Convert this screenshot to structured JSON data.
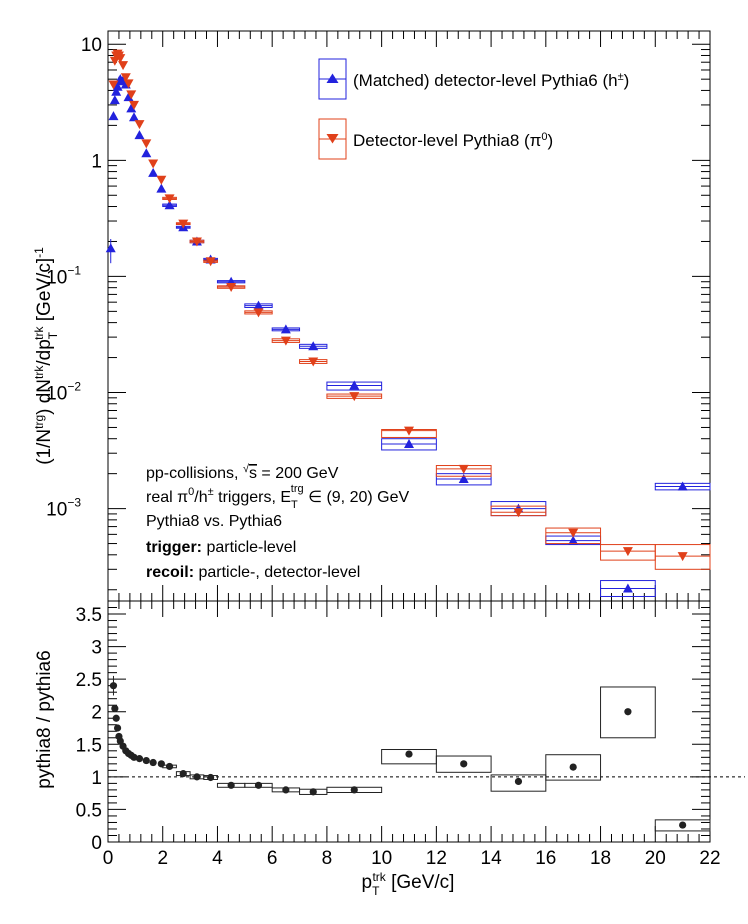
{
  "colors": {
    "blue": "#2222dd",
    "red": "#e0401a",
    "black": "#222222"
  },
  "chart_data": [
    {
      "type": "scatter",
      "ylog": true,
      "x_range": [
        0,
        22
      ],
      "y_range": [
        0.00016,
        13
      ],
      "y_ticks": [
        {
          "value": 10,
          "label": "10"
        },
        {
          "value": 1,
          "label": "1"
        },
        {
          "value": 0.1,
          "label": "10",
          "exp": "−1"
        },
        {
          "value": 0.01,
          "label": "10",
          "exp": "−2"
        },
        {
          "value": 0.001,
          "label": "10",
          "exp": "−3"
        }
      ],
      "ylabel": {
        "prefix": "(1/N",
        "sup1": "trg",
        "mid1": ") dN",
        "sup2": "trk",
        "mid2": "/dp",
        "sub3": "T",
        "sup3": "trk",
        "mid3": " [GeV/c]",
        "sup4": "-1"
      },
      "legend": [
        {
          "label": "(Matched) detector-level Pythia6 (h",
          "sup": "±",
          "tail": ")",
          "color": "blue",
          "marker": "triangle-up"
        },
        {
          "label": "Detector-level Pythia8 (π",
          "sup": "0",
          "tail": ")",
          "color": "red",
          "marker": "triangle-down"
        }
      ],
      "annotations": [
        {
          "text": "pp-collisions, √s = 200 GeV"
        },
        {
          "text": "real π⁰/h± triggers, E_T^trg ∈ (9, 20) GeV"
        },
        {
          "text": "Pythia8 vs. Pythia6"
        },
        {
          "bold": "trigger:",
          "text": " particle-level"
        },
        {
          "bold": "recoil:",
          "text": " particle-, detector-level"
        }
      ],
      "series": [
        {
          "name": "(Matched) detector-level Pythia6 (h±)",
          "color": "blue",
          "marker": "triangle-up",
          "points": [
            {
              "x": 0.1,
              "xlo": 0.0,
              "xhi": 0.2,
              "y": 0.175,
              "ylo": 0.13,
              "yhi": 0.21
            },
            {
              "x": 0.2,
              "xlo": 0.15,
              "xhi": 0.25,
              "y": 2.4,
              "ylo": 2.3,
              "yhi": 2.5
            },
            {
              "x": 0.25,
              "xlo": 0.2,
              "xhi": 0.3,
              "y": 3.3,
              "ylo": 3.2,
              "yhi": 3.4
            },
            {
              "x": 0.3,
              "xlo": 0.25,
              "xhi": 0.35,
              "y": 3.9,
              "ylo": 3.8,
              "yhi": 4.0
            },
            {
              "x": 0.35,
              "xlo": 0.3,
              "xhi": 0.4,
              "y": 4.3,
              "ylo": 4.2,
              "yhi": 4.4
            },
            {
              "x": 0.4,
              "xlo": 0.35,
              "xhi": 0.45,
              "y": 4.8,
              "ylo": 4.7,
              "yhi": 4.9
            },
            {
              "x": 0.45,
              "xlo": 0.4,
              "xhi": 0.5,
              "y": 5.0,
              "ylo": 4.9,
              "yhi": 5.1
            },
            {
              "x": 0.55,
              "xlo": 0.5,
              "xhi": 0.6,
              "y": 4.9,
              "ylo": 4.8,
              "yhi": 5.0
            },
            {
              "x": 0.65,
              "xlo": 0.6,
              "xhi": 0.7,
              "y": 4.5,
              "ylo": 4.4,
              "yhi": 4.6
            },
            {
              "x": 0.75,
              "xlo": 0.7,
              "xhi": 0.8,
              "y": 3.5,
              "ylo": 3.4,
              "yhi": 3.6
            },
            {
              "x": 0.85,
              "xlo": 0.8,
              "xhi": 0.9,
              "y": 2.8,
              "ylo": 2.7,
              "yhi": 2.9
            },
            {
              "x": 0.95,
              "xlo": 0.9,
              "xhi": 1.0,
              "y": 2.35,
              "ylo": 2.3,
              "yhi": 2.4
            },
            {
              "x": 1.15,
              "xlo": 1.1,
              "xhi": 1.2,
              "y": 1.65,
              "ylo": 1.6,
              "yhi": 1.7
            },
            {
              "x": 1.4,
              "xlo": 1.3,
              "xhi": 1.5,
              "y": 1.15,
              "ylo": 1.12,
              "yhi": 1.18
            },
            {
              "x": 1.65,
              "xlo": 1.5,
              "xhi": 1.8,
              "y": 0.78,
              "ylo": 0.76,
              "yhi": 0.8
            },
            {
              "x": 1.95,
              "xlo": 1.8,
              "xhi": 2.1,
              "y": 0.57,
              "ylo": 0.56,
              "yhi": 0.58
            },
            {
              "x": 2.25,
              "xlo": 2.0,
              "xhi": 2.5,
              "y": 0.41,
              "ylo": 0.4,
              "yhi": 0.42
            },
            {
              "x": 2.75,
              "xlo": 2.5,
              "xhi": 3.0,
              "y": 0.265,
              "ylo": 0.26,
              "yhi": 0.27
            },
            {
              "x": 3.25,
              "xlo": 3.0,
              "xhi": 3.5,
              "y": 0.2,
              "ylo": 0.195,
              "yhi": 0.205
            },
            {
              "x": 3.75,
              "xlo": 3.5,
              "xhi": 4.0,
              "y": 0.14,
              "ylo": 0.137,
              "yhi": 0.143
            },
            {
              "x": 4.5,
              "xlo": 4.0,
              "xhi": 5.0,
              "y": 0.09,
              "ylo": 0.088,
              "yhi": 0.092
            },
            {
              "x": 5.5,
              "xlo": 5.0,
              "xhi": 6.0,
              "y": 0.056,
              "ylo": 0.054,
              "yhi": 0.058
            },
            {
              "x": 6.5,
              "xlo": 6.0,
              "xhi": 7.0,
              "y": 0.035,
              "ylo": 0.034,
              "yhi": 0.036
            },
            {
              "x": 7.5,
              "xlo": 7.0,
              "xhi": 8.0,
              "y": 0.025,
              "ylo": 0.024,
              "yhi": 0.026
            },
            {
              "x": 9.0,
              "xlo": 8.0,
              "xhi": 10.0,
              "y": 0.0115,
              "ylo": 0.0105,
              "yhi": 0.0123
            },
            {
              "x": 11.0,
              "xlo": 10.0,
              "xhi": 12.0,
              "y": 0.0036,
              "ylo": 0.0032,
              "yhi": 0.004
            },
            {
              "x": 13.0,
              "xlo": 12.0,
              "xhi": 14.0,
              "y": 0.0018,
              "ylo": 0.0016,
              "yhi": 0.002
            },
            {
              "x": 15.0,
              "xlo": 14.0,
              "xhi": 16.0,
              "y": 0.001,
              "ylo": 0.00087,
              "yhi": 0.00115
            },
            {
              "x": 17.0,
              "xlo": 16.0,
              "xhi": 18.0,
              "y": 0.00053,
              "ylo": 0.00049,
              "yhi": 0.00058
            },
            {
              "x": 19.0,
              "xlo": 18.0,
              "xhi": 20.0,
              "y": 0.000205,
              "ylo": 0.000175,
              "yhi": 0.00024
            },
            {
              "x": 21.0,
              "xlo": 20.0,
              "xhi": 22.0,
              "y": 0.00155,
              "ylo": 0.00145,
              "yhi": 0.00165
            }
          ]
        },
        {
          "name": "Detector-level Pythia8 (π0)",
          "color": "red",
          "marker": "triangle-down",
          "points": [
            {
              "x": 0.2,
              "xlo": 0.15,
              "xhi": 0.25,
              "y": 4.5,
              "ylo": 4.4,
              "yhi": 4.6
            },
            {
              "x": 0.25,
              "xlo": 0.2,
              "xhi": 0.3,
              "y": 7.2,
              "ylo": 7.0,
              "yhi": 7.4
            },
            {
              "x": 0.3,
              "xlo": 0.25,
              "xhi": 0.35,
              "y": 8.0,
              "ylo": 7.8,
              "yhi": 8.2
            },
            {
              "x": 0.35,
              "xlo": 0.3,
              "xhi": 0.4,
              "y": 8.3,
              "ylo": 8.1,
              "yhi": 8.5
            },
            {
              "x": 0.4,
              "xlo": 0.35,
              "xhi": 0.45,
              "y": 8.0,
              "ylo": 7.8,
              "yhi": 8.2
            },
            {
              "x": 0.45,
              "xlo": 0.4,
              "xhi": 0.5,
              "y": 7.6,
              "ylo": 7.4,
              "yhi": 7.8
            },
            {
              "x": 0.55,
              "xlo": 0.5,
              "xhi": 0.6,
              "y": 6.6,
              "ylo": 6.4,
              "yhi": 6.8
            },
            {
              "x": 0.65,
              "xlo": 0.6,
              "xhi": 0.7,
              "y": 5.2,
              "ylo": 5.0,
              "yhi": 5.4
            },
            {
              "x": 0.75,
              "xlo": 0.7,
              "xhi": 0.8,
              "y": 4.6,
              "ylo": 4.4,
              "yhi": 4.8
            },
            {
              "x": 0.85,
              "xlo": 0.8,
              "xhi": 0.9,
              "y": 3.7,
              "ylo": 3.6,
              "yhi": 3.8
            },
            {
              "x": 0.95,
              "xlo": 0.9,
              "xhi": 1.0,
              "y": 3.0,
              "ylo": 2.9,
              "yhi": 3.1
            },
            {
              "x": 1.15,
              "xlo": 1.1,
              "xhi": 1.2,
              "y": 2.05,
              "ylo": 2.0,
              "yhi": 2.1
            },
            {
              "x": 1.4,
              "xlo": 1.3,
              "xhi": 1.5,
              "y": 1.4,
              "ylo": 1.37,
              "yhi": 1.43
            },
            {
              "x": 1.65,
              "xlo": 1.5,
              "xhi": 1.8,
              "y": 0.94,
              "ylo": 0.92,
              "yhi": 0.96
            },
            {
              "x": 1.95,
              "xlo": 1.8,
              "xhi": 2.1,
              "y": 0.68,
              "ylo": 0.66,
              "yhi": 0.7
            },
            {
              "x": 2.25,
              "xlo": 2.0,
              "xhi": 2.5,
              "y": 0.47,
              "ylo": 0.46,
              "yhi": 0.48
            },
            {
              "x": 2.75,
              "xlo": 2.5,
              "xhi": 3.0,
              "y": 0.285,
              "ylo": 0.28,
              "yhi": 0.29
            },
            {
              "x": 3.25,
              "xlo": 3.0,
              "xhi": 3.5,
              "y": 0.2,
              "ylo": 0.195,
              "yhi": 0.205
            },
            {
              "x": 3.75,
              "xlo": 3.5,
              "xhi": 4.0,
              "y": 0.135,
              "ylo": 0.132,
              "yhi": 0.138
            },
            {
              "x": 4.5,
              "xlo": 4.0,
              "xhi": 5.0,
              "y": 0.081,
              "ylo": 0.079,
              "yhi": 0.083
            },
            {
              "x": 5.5,
              "xlo": 5.0,
              "xhi": 6.0,
              "y": 0.049,
              "ylo": 0.0475,
              "yhi": 0.0505
            },
            {
              "x": 6.5,
              "xlo": 6.0,
              "xhi": 7.0,
              "y": 0.028,
              "ylo": 0.027,
              "yhi": 0.029
            },
            {
              "x": 7.5,
              "xlo": 7.0,
              "xhi": 8.0,
              "y": 0.0185,
              "ylo": 0.0178,
              "yhi": 0.0192
            },
            {
              "x": 9.0,
              "xlo": 8.0,
              "xhi": 10.0,
              "y": 0.0093,
              "ylo": 0.0089,
              "yhi": 0.0097
            },
            {
              "x": 11.0,
              "xlo": 10.0,
              "xhi": 12.0,
              "y": 0.0047,
              "ylo": 0.0041,
              "yhi": 0.0048
            },
            {
              "x": 13.0,
              "xlo": 12.0,
              "xhi": 14.0,
              "y": 0.0022,
              "ylo": 0.0019,
              "yhi": 0.00235
            },
            {
              "x": 15.0,
              "xlo": 14.0,
              "xhi": 16.0,
              "y": 0.00093,
              "ylo": 0.00087,
              "yhi": 0.00105
            },
            {
              "x": 17.0,
              "xlo": 16.0,
              "xhi": 18.0,
              "y": 0.00062,
              "ylo": 0.0005,
              "yhi": 0.00068
            },
            {
              "x": 19.0,
              "xlo": 18.0,
              "xhi": 20.0,
              "y": 0.00043,
              "ylo": 0.00036,
              "yhi": 0.00049
            },
            {
              "x": 21.0,
              "xlo": 20.0,
              "xhi": 22.0,
              "y": 0.00039,
              "ylo": 0.0003,
              "yhi": 0.00049
            }
          ]
        }
      ]
    },
    {
      "type": "scatter",
      "x_range": [
        0,
        22
      ],
      "y_range": [
        0,
        3.7
      ],
      "x_ticks": [
        0,
        2,
        4,
        6,
        8,
        10,
        12,
        14,
        16,
        18,
        20,
        22
      ],
      "y_ticks": [
        0,
        0.5,
        1,
        1.5,
        2,
        2.5,
        3,
        3.5
      ],
      "y_tick_labels": [
        "0",
        "0.5",
        "1",
        "1.5",
        "2",
        "2.5",
        "3",
        "3.5"
      ],
      "xlabel": {
        "main": "p",
        "sub": "T",
        "sup": "trk",
        "tail": " [GeV/c]"
      },
      "ylabel": "pythia8 / pythia6",
      "reference_line": 1,
      "series": [
        {
          "name": "pythia8 / pythia6",
          "color": "black",
          "marker": "circle",
          "points": [
            {
              "x": 0.2,
              "xlo": 0.15,
              "xhi": 0.25,
              "y": 2.4,
              "ylo": 2.25,
              "yhi": 2.55
            },
            {
              "x": 0.25,
              "xlo": 0.2,
              "xhi": 0.3,
              "y": 2.05,
              "ylo": 2.0,
              "yhi": 2.1
            },
            {
              "x": 0.3,
              "xlo": 0.25,
              "xhi": 0.35,
              "y": 1.9,
              "ylo": 1.85,
              "yhi": 1.95
            },
            {
              "x": 0.35,
              "xlo": 0.3,
              "xhi": 0.4,
              "y": 1.75,
              "ylo": 1.72,
              "yhi": 1.78
            },
            {
              "x": 0.4,
              "xlo": 0.35,
              "xhi": 0.45,
              "y": 1.62,
              "ylo": 1.6,
              "yhi": 1.64
            },
            {
              "x": 0.45,
              "xlo": 0.4,
              "xhi": 0.5,
              "y": 1.55,
              "ylo": 1.53,
              "yhi": 1.57
            },
            {
              "x": 0.55,
              "xlo": 0.5,
              "xhi": 0.6,
              "y": 1.47,
              "ylo": 1.45,
              "yhi": 1.49
            },
            {
              "x": 0.65,
              "xlo": 0.6,
              "xhi": 0.7,
              "y": 1.4,
              "ylo": 1.38,
              "yhi": 1.42
            },
            {
              "x": 0.75,
              "xlo": 0.7,
              "xhi": 0.8,
              "y": 1.36,
              "ylo": 1.34,
              "yhi": 1.38
            },
            {
              "x": 0.85,
              "xlo": 0.8,
              "xhi": 0.9,
              "y": 1.33,
              "ylo": 1.31,
              "yhi": 1.35
            },
            {
              "x": 0.95,
              "xlo": 0.9,
              "xhi": 1.0,
              "y": 1.3,
              "ylo": 1.28,
              "yhi": 1.32
            },
            {
              "x": 1.15,
              "xlo": 1.1,
              "xhi": 1.2,
              "y": 1.28,
              "ylo": 1.26,
              "yhi": 1.3
            },
            {
              "x": 1.4,
              "xlo": 1.3,
              "xhi": 1.5,
              "y": 1.25,
              "ylo": 1.23,
              "yhi": 1.27
            },
            {
              "x": 1.65,
              "xlo": 1.5,
              "xhi": 1.8,
              "y": 1.22,
              "ylo": 1.2,
              "yhi": 1.24
            },
            {
              "x": 1.95,
              "xlo": 1.8,
              "xhi": 2.1,
              "y": 1.2,
              "ylo": 1.18,
              "yhi": 1.22
            },
            {
              "x": 2.25,
              "xlo": 2.0,
              "xhi": 2.5,
              "y": 1.16,
              "ylo": 1.14,
              "yhi": 1.18
            },
            {
              "x": 2.75,
              "xlo": 2.5,
              "xhi": 3.0,
              "y": 1.05,
              "ylo": 1.02,
              "yhi": 1.08
            },
            {
              "x": 3.25,
              "xlo": 3.0,
              "xhi": 3.5,
              "y": 1.0,
              "ylo": 0.97,
              "yhi": 1.03
            },
            {
              "x": 3.75,
              "xlo": 3.5,
              "xhi": 4.0,
              "y": 0.99,
              "ylo": 0.96,
              "yhi": 1.02
            },
            {
              "x": 4.5,
              "xlo": 4.0,
              "xhi": 5.0,
              "y": 0.87,
              "ylo": 0.84,
              "yhi": 0.9
            },
            {
              "x": 5.5,
              "xlo": 5.0,
              "xhi": 6.0,
              "y": 0.87,
              "ylo": 0.84,
              "yhi": 0.9
            },
            {
              "x": 6.5,
              "xlo": 6.0,
              "xhi": 7.0,
              "y": 0.8,
              "ylo": 0.77,
              "yhi": 0.83
            },
            {
              "x": 7.5,
              "xlo": 7.0,
              "xhi": 8.0,
              "y": 0.77,
              "ylo": 0.73,
              "yhi": 0.81
            },
            {
              "x": 9.0,
              "xlo": 8.0,
              "xhi": 10.0,
              "y": 0.8,
              "ylo": 0.76,
              "yhi": 0.84
            },
            {
              "x": 11.0,
              "xlo": 10.0,
              "xhi": 12.0,
              "y": 1.35,
              "ylo": 1.2,
              "yhi": 1.42
            },
            {
              "x": 13.0,
              "xlo": 12.0,
              "xhi": 14.0,
              "y": 1.2,
              "ylo": 1.07,
              "yhi": 1.32
            },
            {
              "x": 15.0,
              "xlo": 14.0,
              "xhi": 16.0,
              "y": 0.93,
              "ylo": 0.78,
              "yhi": 1.03
            },
            {
              "x": 17.0,
              "xlo": 16.0,
              "xhi": 18.0,
              "y": 1.15,
              "ylo": 0.95,
              "yhi": 1.34
            },
            {
              "x": 19.0,
              "xlo": 18.0,
              "xhi": 20.0,
              "y": 2.0,
              "ylo": 1.6,
              "yhi": 2.38
            },
            {
              "x": 21.0,
              "xlo": 20.0,
              "xhi": 22.0,
              "y": 0.26,
              "ylo": 0.17,
              "yhi": 0.34
            }
          ]
        }
      ]
    }
  ]
}
